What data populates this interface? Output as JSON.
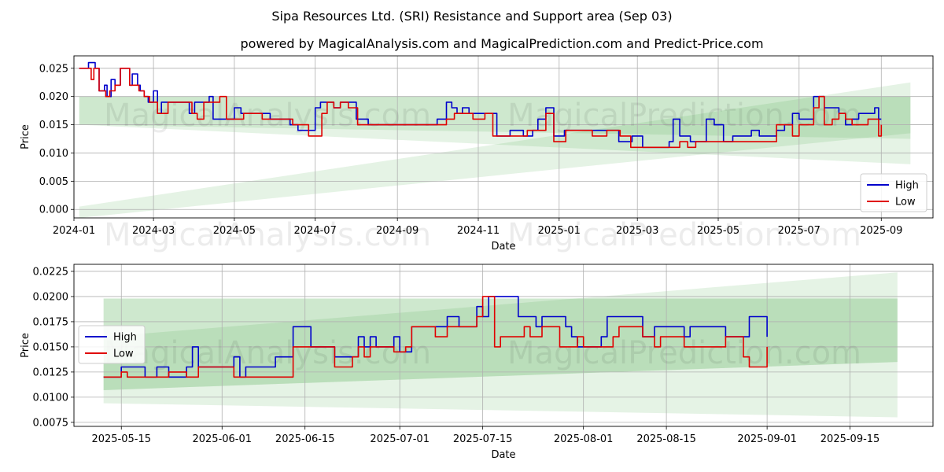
{
  "title": "Sipa Resources Ltd. (SRI) Resistance and Support area (Sep 03)",
  "subtitle": "powered by MagicalAnalysis.com and MagicalPrediction.com and Predict-Price.com",
  "watermarks": [
    "MagicalAnalysis.com",
    "MagicalPrediction.com"
  ],
  "colors": {
    "high": "#0000cc",
    "low": "#e00000",
    "band": "#2ca02c",
    "grid": "#b0b0b0"
  },
  "chart_data": [
    {
      "type": "line",
      "xlabel": "Date",
      "ylabel": "Price",
      "ylim": [
        -0.0015,
        0.0272
      ],
      "xlim": [
        "2024-01-01",
        "2025-10-10"
      ],
      "x_ticks": [
        "2024-01",
        "2024-03",
        "2024-05",
        "2024-07",
        "2024-09",
        "2024-11",
        "2025-01",
        "2025-03",
        "2025-05",
        "2025-07",
        "2025-09"
      ],
      "y_ticks": [
        "0.000",
        "0.005",
        "0.010",
        "0.015",
        "0.020",
        "0.025"
      ],
      "legend": "bottom-right",
      "grid": true,
      "bands": [
        {
          "x": [
            "2024-01-05",
            "2025-09-23"
          ],
          "upper": [
            0.02,
            0.02
          ],
          "lower": [
            0.015,
            0.0125
          ]
        },
        {
          "x": [
            "2024-01-05",
            "2025-09-23"
          ],
          "upper": [
            0.02,
            0.02
          ],
          "lower": [
            0.015,
            0.008
          ]
        },
        {
          "x": [
            "2024-01-05",
            "2025-09-23"
          ],
          "upper": [
            0.0005,
            0.0225
          ],
          "lower": [
            -0.0015,
            0.0135
          ]
        }
      ],
      "series": [
        {
          "name": "High",
          "x": [
            "2024-01-05",
            "2024-01-10",
            "2024-01-12",
            "2024-01-15",
            "2024-01-17",
            "2024-01-20",
            "2024-01-24",
            "2024-01-26",
            "2024-01-29",
            "2024-02-01",
            "2024-02-05",
            "2024-02-08",
            "2024-02-12",
            "2024-02-14",
            "2024-02-18",
            "2024-02-20",
            "2024-02-23",
            "2024-02-26",
            "2024-03-01",
            "2024-03-04",
            "2024-03-07",
            "2024-03-11",
            "2024-03-15",
            "2024-03-20",
            "2024-03-28",
            "2024-04-01",
            "2024-04-05",
            "2024-04-08",
            "2024-04-12",
            "2024-04-15",
            "2024-04-18",
            "2024-04-22",
            "2024-04-26",
            "2024-05-01",
            "2024-05-06",
            "2024-05-10",
            "2024-05-15",
            "2024-05-20",
            "2024-05-28",
            "2024-06-05",
            "2024-06-12",
            "2024-06-18",
            "2024-06-26",
            "2024-07-01",
            "2024-07-05",
            "2024-07-10",
            "2024-07-15",
            "2024-07-20",
            "2024-07-25",
            "2024-08-01",
            "2024-08-10",
            "2024-08-20",
            "2024-08-30",
            "2024-09-10",
            "2024-09-20",
            "2024-10-01",
            "2024-10-08",
            "2024-10-12",
            "2024-10-16",
            "2024-10-20",
            "2024-10-25",
            "2024-11-01",
            "2024-11-10",
            "2024-11-15",
            "2024-11-25",
            "2024-12-05",
            "2024-12-12",
            "2024-12-16",
            "2024-12-22",
            "2024-12-28",
            "2025-01-05",
            "2025-01-15",
            "2025-01-25",
            "2025-02-05",
            "2025-02-15",
            "2025-02-25",
            "2025-03-05",
            "2025-03-15",
            "2025-03-25",
            "2025-03-28",
            "2025-04-02",
            "2025-04-10",
            "2025-04-18",
            "2025-04-22",
            "2025-04-28",
            "2025-05-05",
            "2025-05-12",
            "2025-05-20",
            "2025-05-26",
            "2025-06-01",
            "2025-06-08",
            "2025-06-14",
            "2025-06-20",
            "2025-06-26",
            "2025-07-01",
            "2025-07-07",
            "2025-07-12",
            "2025-07-16",
            "2025-07-20",
            "2025-07-26",
            "2025-07-31",
            "2025-08-05",
            "2025-08-10",
            "2025-08-15",
            "2025-08-22",
            "2025-08-27",
            "2025-08-30",
            "2025-09-01"
          ],
          "y": [
            0.025,
            0.025,
            0.026,
            0.026,
            0.025,
            0.021,
            0.022,
            0.02,
            0.023,
            0.022,
            0.025,
            0.025,
            0.022,
            0.024,
            0.022,
            0.021,
            0.02,
            0.019,
            0.021,
            0.017,
            0.019,
            0.019,
            0.019,
            0.019,
            0.017,
            0.019,
            0.019,
            0.019,
            0.02,
            0.016,
            0.016,
            0.016,
            0.016,
            0.018,
            0.017,
            0.017,
            0.017,
            0.017,
            0.016,
            0.016,
            0.015,
            0.014,
            0.014,
            0.018,
            0.019,
            0.019,
            0.018,
            0.019,
            0.019,
            0.016,
            0.015,
            0.015,
            0.015,
            0.015,
            0.015,
            0.016,
            0.019,
            0.018,
            0.017,
            0.018,
            0.017,
            0.017,
            0.017,
            0.013,
            0.014,
            0.013,
            0.014,
            0.016,
            0.018,
            0.013,
            0.014,
            0.014,
            0.014,
            0.014,
            0.012,
            0.013,
            0.011,
            0.011,
            0.012,
            0.016,
            0.013,
            0.012,
            0.012,
            0.016,
            0.015,
            0.012,
            0.013,
            0.013,
            0.014,
            0.013,
            0.013,
            0.014,
            0.015,
            0.017,
            0.016,
            0.016,
            0.02,
            0.02,
            0.018,
            0.018,
            0.017,
            0.015,
            0.016,
            0.017,
            0.017,
            0.018,
            0.016,
            0.016
          ]
        },
        {
          "name": "Low",
          "x": [
            "2024-01-05",
            "2024-01-10",
            "2024-01-12",
            "2024-01-14",
            "2024-01-16",
            "2024-01-20",
            "2024-01-25",
            "2024-01-28",
            "2024-02-01",
            "2024-02-05",
            "2024-02-08",
            "2024-02-12",
            "2024-02-15",
            "2024-02-19",
            "2024-02-23",
            "2024-02-27",
            "2024-03-01",
            "2024-03-04",
            "2024-03-08",
            "2024-03-12",
            "2024-03-18",
            "2024-03-26",
            "2024-03-30",
            "2024-04-03",
            "2024-04-08",
            "2024-04-12",
            "2024-04-16",
            "2024-04-20",
            "2024-04-25",
            "2024-05-01",
            "2024-05-08",
            "2024-05-15",
            "2024-05-22",
            "2024-05-30",
            "2024-06-06",
            "2024-06-14",
            "2024-06-20",
            "2024-06-26",
            "2024-07-01",
            "2024-07-06",
            "2024-07-10",
            "2024-07-15",
            "2024-07-20",
            "2024-07-26",
            "2024-08-02",
            "2024-08-12",
            "2024-08-22",
            "2024-09-01",
            "2024-09-12",
            "2024-09-22",
            "2024-10-01",
            "2024-10-08",
            "2024-10-14",
            "2024-10-20",
            "2024-10-28",
            "2024-11-06",
            "2024-11-12",
            "2024-11-18",
            "2024-11-28",
            "2024-12-08",
            "2024-12-16",
            "2024-12-22",
            "2024-12-28",
            "2025-01-06",
            "2025-01-16",
            "2025-01-26",
            "2025-02-06",
            "2025-02-16",
            "2025-02-24",
            "2025-03-02",
            "2025-03-12",
            "2025-03-22",
            "2025-04-02",
            "2025-04-08",
            "2025-04-14",
            "2025-04-20",
            "2025-04-26",
            "2025-05-05",
            "2025-05-12",
            "2025-05-20",
            "2025-05-26",
            "2025-06-01",
            "2025-06-08",
            "2025-06-14",
            "2025-06-20",
            "2025-06-26",
            "2025-07-01",
            "2025-07-07",
            "2025-07-12",
            "2025-07-16",
            "2025-07-20",
            "2025-07-26",
            "2025-07-31",
            "2025-08-05",
            "2025-08-10",
            "2025-08-15",
            "2025-08-22",
            "2025-08-27",
            "2025-08-30",
            "2025-09-01"
          ],
          "y": [
            0.025,
            0.025,
            0.025,
            0.023,
            0.025,
            0.021,
            0.02,
            0.021,
            0.022,
            0.025,
            0.025,
            0.022,
            0.022,
            0.021,
            0.02,
            0.019,
            0.019,
            0.017,
            0.017,
            0.019,
            0.019,
            0.019,
            0.017,
            0.016,
            0.019,
            0.019,
            0.019,
            0.02,
            0.016,
            0.016,
            0.017,
            0.017,
            0.016,
            0.016,
            0.016,
            0.015,
            0.015,
            0.013,
            0.013,
            0.017,
            0.019,
            0.018,
            0.019,
            0.018,
            0.015,
            0.015,
            0.015,
            0.015,
            0.015,
            0.015,
            0.015,
            0.016,
            0.017,
            0.017,
            0.016,
            0.017,
            0.013,
            0.013,
            0.013,
            0.014,
            0.014,
            0.017,
            0.012,
            0.014,
            0.014,
            0.013,
            0.014,
            0.013,
            0.011,
            0.011,
            0.011,
            0.011,
            0.012,
            0.011,
            0.012,
            0.012,
            0.012,
            0.012,
            0.012,
            0.012,
            0.012,
            0.012,
            0.012,
            0.015,
            0.015,
            0.013,
            0.015,
            0.015,
            0.018,
            0.02,
            0.015,
            0.016,
            0.017,
            0.016,
            0.015,
            0.015,
            0.016,
            0.016,
            0.013,
            0.015
          ]
        }
      ]
    },
    {
      "type": "line",
      "xlabel": "Date",
      "ylabel": "Price",
      "ylim": [
        0.0071,
        0.0232
      ],
      "xlim": [
        "2025-05-07",
        "2025-09-29"
      ],
      "x_ticks": [
        "2025-05-15",
        "2025-06-01",
        "2025-06-15",
        "2025-07-01",
        "2025-07-15",
        "2025-08-01",
        "2025-08-15",
        "2025-09-01",
        "2025-09-15"
      ],
      "y_ticks": [
        "0.0075",
        "0.0100",
        "0.0125",
        "0.0150",
        "0.0175",
        "0.0200",
        "0.0225"
      ],
      "legend": "center-left",
      "grid": true,
      "bands": [
        {
          "x": [
            "2025-05-12",
            "2025-09-23"
          ],
          "upper": [
            0.0198,
            0.0198
          ],
          "lower": [
            0.0107,
            0.0135
          ]
        },
        {
          "x": [
            "2025-05-12",
            "2025-09-23"
          ],
          "upper": [
            0.0198,
            0.0198
          ],
          "lower": [
            0.0094,
            0.008
          ]
        },
        {
          "x": [
            "2025-05-12",
            "2025-09-23"
          ],
          "upper": [
            0.016,
            0.0224
          ],
          "lower": [
            0.0107,
            0.0135
          ]
        }
      ],
      "series": [
        {
          "name": "High",
          "x": [
            "2025-05-12",
            "2025-05-13",
            "2025-05-15",
            "2025-05-16",
            "2025-05-19",
            "2025-05-20",
            "2025-05-21",
            "2025-05-22",
            "2025-05-23",
            "2025-05-26",
            "2025-05-27",
            "2025-05-28",
            "2025-06-02",
            "2025-06-03",
            "2025-06-04",
            "2025-06-05",
            "2025-06-06",
            "2025-06-10",
            "2025-06-13",
            "2025-06-16",
            "2025-06-17",
            "2025-06-20",
            "2025-06-23",
            "2025-06-24",
            "2025-06-25",
            "2025-06-26",
            "2025-06-27",
            "2025-06-30",
            "2025-07-01",
            "2025-07-02",
            "2025-07-03",
            "2025-07-04",
            "2025-07-07",
            "2025-07-08",
            "2025-07-09",
            "2025-07-11",
            "2025-07-14",
            "2025-07-15",
            "2025-07-16",
            "2025-07-17",
            "2025-07-18",
            "2025-07-21",
            "2025-07-22",
            "2025-07-23",
            "2025-07-24",
            "2025-07-25",
            "2025-07-28",
            "2025-07-29",
            "2025-07-30",
            "2025-07-31",
            "2025-08-01",
            "2025-08-04",
            "2025-08-05",
            "2025-08-06",
            "2025-08-07",
            "2025-08-08",
            "2025-08-11",
            "2025-08-12",
            "2025-08-13",
            "2025-08-14",
            "2025-08-18",
            "2025-08-19",
            "2025-08-22",
            "2025-08-25",
            "2025-08-26",
            "2025-08-27",
            "2025-08-28",
            "2025-08-29",
            "2025-09-01"
          ],
          "y": [
            0.012,
            0.012,
            0.013,
            0.013,
            0.012,
            0.012,
            0.013,
            0.013,
            0.012,
            0.013,
            0.015,
            0.013,
            0.013,
            0.014,
            0.012,
            0.013,
            0.013,
            0.014,
            0.017,
            0.015,
            0.015,
            0.014,
            0.014,
            0.016,
            0.015,
            0.016,
            0.015,
            0.016,
            0.0145,
            0.0145,
            0.017,
            0.017,
            0.017,
            0.017,
            0.018,
            0.017,
            0.019,
            0.018,
            0.02,
            0.02,
            0.02,
            0.018,
            0.018,
            0.018,
            0.017,
            0.018,
            0.018,
            0.017,
            0.016,
            0.015,
            0.015,
            0.016,
            0.018,
            0.018,
            0.018,
            0.018,
            0.016,
            0.016,
            0.017,
            0.017,
            0.016,
            0.017,
            0.017,
            0.016,
            0.016,
            0.016,
            0.016,
            0.018,
            0.016
          ]
        },
        {
          "name": "Low",
          "x": [
            "2025-05-12",
            "2025-05-13",
            "2025-05-15",
            "2025-05-16",
            "2025-05-19",
            "2025-05-20",
            "2025-05-21",
            "2025-05-22",
            "2025-05-23",
            "2025-05-26",
            "2025-05-27",
            "2025-05-28",
            "2025-06-02",
            "2025-06-03",
            "2025-06-04",
            "2025-06-05",
            "2025-06-10",
            "2025-06-13",
            "2025-06-16",
            "2025-06-17",
            "2025-06-20",
            "2025-06-23",
            "2025-06-24",
            "2025-06-25",
            "2025-06-26",
            "2025-06-30",
            "2025-07-01",
            "2025-07-02",
            "2025-07-03",
            "2025-07-04",
            "2025-07-07",
            "2025-07-08",
            "2025-07-09",
            "2025-07-11",
            "2025-07-14",
            "2025-07-15",
            "2025-07-16",
            "2025-07-17",
            "2025-07-18",
            "2025-07-21",
            "2025-07-22",
            "2025-07-23",
            "2025-07-24",
            "2025-07-25",
            "2025-07-28",
            "2025-07-29",
            "2025-07-30",
            "2025-07-31",
            "2025-08-01",
            "2025-08-04",
            "2025-08-05",
            "2025-08-06",
            "2025-08-07",
            "2025-08-08",
            "2025-08-11",
            "2025-08-12",
            "2025-08-13",
            "2025-08-14",
            "2025-08-18",
            "2025-08-19",
            "2025-08-22",
            "2025-08-25",
            "2025-08-26",
            "2025-08-27",
            "2025-08-28",
            "2025-08-29",
            "2025-09-01"
          ],
          "y": [
            0.012,
            0.012,
            0.0125,
            0.012,
            0.012,
            0.012,
            0.012,
            0.012,
            0.0125,
            0.012,
            0.012,
            0.013,
            0.013,
            0.012,
            0.012,
            0.012,
            0.012,
            0.015,
            0.015,
            0.015,
            0.013,
            0.014,
            0.015,
            0.014,
            0.015,
            0.0145,
            0.0145,
            0.015,
            0.017,
            0.017,
            0.016,
            0.016,
            0.017,
            0.017,
            0.018,
            0.02,
            0.02,
            0.015,
            0.016,
            0.016,
            0.017,
            0.016,
            0.016,
            0.017,
            0.015,
            0.015,
            0.015,
            0.016,
            0.015,
            0.015,
            0.015,
            0.016,
            0.017,
            0.017,
            0.016,
            0.016,
            0.015,
            0.016,
            0.015,
            0.015,
            0.015,
            0.016,
            0.016,
            0.016,
            0.014,
            0.013,
            0.015
          ]
        }
      ]
    }
  ]
}
